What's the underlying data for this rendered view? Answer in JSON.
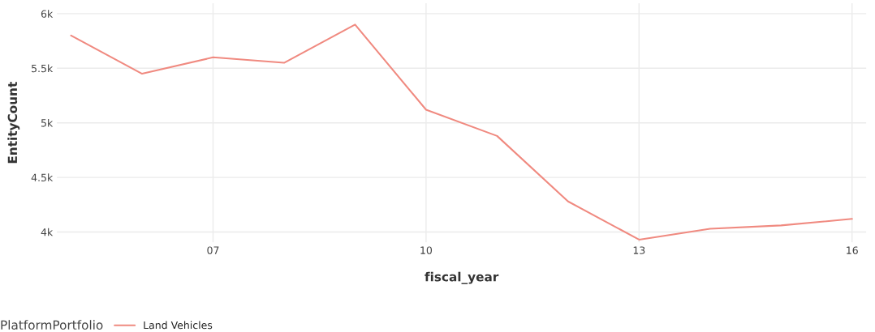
{
  "chart_data": {
    "type": "line",
    "xlabel": "fiscal_year",
    "ylabel": "EntityCount",
    "legend_title": "PlatformPortfolio",
    "x": [
      5,
      6,
      7,
      8,
      9,
      10,
      11,
      12,
      13,
      14,
      15,
      16
    ],
    "series": [
      {
        "name": "Land Vehicles",
        "color": "#f08a80",
        "values": [
          5800,
          5450,
          5600,
          5550,
          5900,
          5120,
          4880,
          4280,
          3930,
          4030,
          4060,
          4120
        ]
      }
    ],
    "xlim": [
      4.8,
      16.2
    ],
    "ylim": [
      3905,
      6095
    ],
    "xticks": [
      {
        "value": 7,
        "label": "07"
      },
      {
        "value": 10,
        "label": "10"
      },
      {
        "value": 13,
        "label": "13"
      },
      {
        "value": 16,
        "label": "16"
      }
    ],
    "yticks": [
      {
        "value": 4000,
        "label": "4k"
      },
      {
        "value": 4500,
        "label": "4.5k"
      },
      {
        "value": 5000,
        "label": "5k"
      },
      {
        "value": 5500,
        "label": "5.5k"
      },
      {
        "value": 6000,
        "label": "6k"
      }
    ],
    "grid": true,
    "legend": "bottom"
  }
}
